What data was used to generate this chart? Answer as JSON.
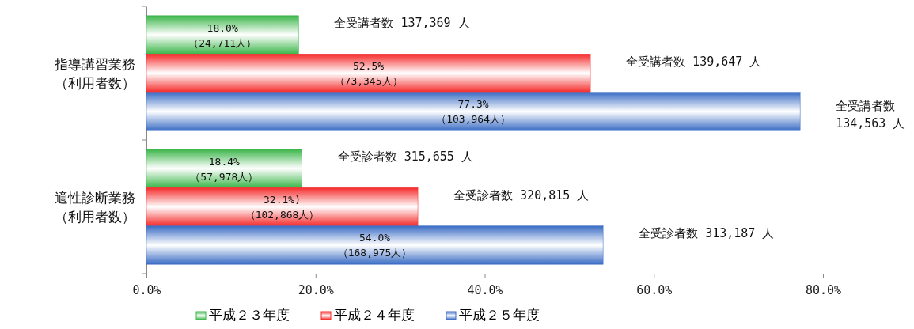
{
  "chart_data": {
    "type": "bar",
    "orientation": "horizontal",
    "categories": [
      "指導講習業務（利用者数）",
      "適性診断業務（利用者数）"
    ],
    "series": [
      {
        "name": "平成２３年度",
        "color": "#3cb64a",
        "values": [
          18.0,
          18.4
        ],
        "value_labels": [
          "18.0%\n（24,711人）",
          "18.4%\n（57,978人）"
        ]
      },
      {
        "name": "平成２４年度",
        "color": "#f52a2a",
        "values": [
          52.5,
          32.1
        ],
        "value_labels": [
          "52.5%\n（73,345人）",
          "32.1%)\n（102,868人）"
        ]
      },
      {
        "name": "平成２５年度",
        "color": "#3a6cc4",
        "values": [
          77.3,
          54.0
        ],
        "value_labels": [
          "77.3%\n（103,964人）",
          "54.0%\n（168,975人）"
        ]
      }
    ],
    "xlim": [
      0,
      80
    ],
    "xticks": [
      {
        "value": 0,
        "label": "0.0%"
      },
      {
        "value": 20,
        "label": "20.0%"
      },
      {
        "value": 40,
        "label": "40.0%"
      },
      {
        "value": 60,
        "label": "60.0%"
      },
      {
        "value": 80,
        "label": "80.0%"
      }
    ],
    "legend": "bottom",
    "annotations": [
      "全受講者数 137,369 人",
      "全受講者数 139,647 人",
      "全受講者数 134,563 人",
      "全受診者数 315,655 人",
      "全受診者数 320,815 人",
      "全受診者数 313,187 人"
    ]
  }
}
